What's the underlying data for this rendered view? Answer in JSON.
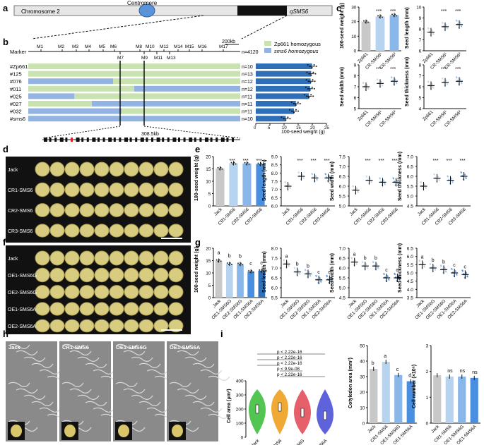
{
  "panels": {
    "a": "a",
    "b": "b",
    "c": "c",
    "d": "d",
    "e": "e",
    "f": "f",
    "g": "g",
    "h": "h",
    "i": "i"
  },
  "panel_a": {
    "chromosome": "Chromosome 2",
    "centromere": "Centromere",
    "qtl": "qSMS6"
  },
  "panel_b": {
    "scale": "200kb",
    "marker_label": "Marker",
    "n_total": "n=4120",
    "markers_top": [
      "M1",
      "M2",
      "M3",
      "M4",
      "M5",
      "M6",
      "M8",
      "M10",
      "M12",
      "M14",
      "M15",
      "M16",
      "M17"
    ],
    "markers_bottom": [
      "M7",
      "M9",
      "M11",
      "M13"
    ],
    "legend": [
      "Zp661 homozygous",
      "sms6 homozygous"
    ],
    "legend_colors": [
      "#c9e3b0",
      "#93b3e0"
    ],
    "lines": [
      {
        "name": "#Zp661",
        "n": "n=10",
        "value": 19.9
      },
      {
        "name": "#125",
        "n": "n=13",
        "value": 19.6
      },
      {
        "name": "#076",
        "n": "n=12",
        "value": 19.4
      },
      {
        "name": "#011",
        "n": "n=12",
        "value": 19.2
      },
      {
        "name": "#025",
        "n": "n=11",
        "value": 18.8
      },
      {
        "name": "#027",
        "n": "n=11",
        "value": 14.2
      },
      {
        "name": "#032",
        "n": "n=11",
        "value": 13.5
      },
      {
        "name": "#sms6",
        "n": "n=10",
        "value": 10.6
      }
    ],
    "bar_ticks": [
      "0",
      "5",
      "10",
      "15",
      "20",
      "25"
    ],
    "bar_xlabel": "100-seed weight (g)",
    "region": "308.5kb"
  },
  "panel_c": {
    "groups": [
      "Zp661",
      "CR-SMS6¹",
      "CR-SMS6²"
    ],
    "sig": "***",
    "charts": [
      {
        "ylabel": "100-seed weight (g)",
        "ticks": [
          "0",
          "10",
          "20",
          "30"
        ],
        "ylim": [
          0,
          30
        ],
        "values": [
          20,
          23.5,
          24.5
        ],
        "colors": [
          "#c8c8c8",
          "#b6d3f0",
          "#8ab7ea"
        ]
      },
      {
        "ylabel": "Seed length (mm)",
        "ticks": [
          "6",
          "7",
          "8",
          "9",
          "10"
        ],
        "ylim": [
          6,
          10
        ],
        "values": [
          7.7,
          8.2,
          8.4
        ]
      },
      {
        "ylabel": "Seed width (mm)",
        "ticks": [
          "5",
          "6",
          "7",
          "8",
          "9"
        ],
        "ylim": [
          5,
          9
        ],
        "values": [
          7.0,
          7.3,
          7.5
        ]
      },
      {
        "ylabel": "Seed thickness (mm)",
        "ticks": [
          "4",
          "5",
          "6",
          "7",
          "8"
        ],
        "ylim": [
          4,
          8
        ],
        "values": [
          6.1,
          6.4,
          6.5
        ]
      }
    ]
  },
  "panel_d": {
    "rows": [
      "Jack",
      "CR1-SMS6",
      "CR2-SMS6",
      "CR3-SMS6"
    ]
  },
  "panel_e": {
    "groups": [
      "Jack",
      "CR1-SMS6",
      "CR2-SMS6",
      "CR3-SMS6"
    ],
    "sig": "***",
    "charts": [
      {
        "ylabel": "100-seed weight (g)",
        "ticks": [
          "0",
          "5",
          "10",
          "15",
          "20"
        ],
        "ylim": [
          0,
          20
        ],
        "values": [
          15.2,
          17.3,
          17.2,
          17.0
        ]
      },
      {
        "ylabel": "Seed length (mm)",
        "ticks": [
          "6.0",
          "6.5",
          "7.0",
          "7.5",
          "8.0",
          "8.5",
          "9.0"
        ],
        "ylim": [
          6,
          9
        ],
        "values": [
          7.2,
          7.8,
          7.7,
          7.7
        ]
      },
      {
        "ylabel": "Seed width (mm)",
        "ticks": [
          "5.0",
          "5.5",
          "6.0",
          "6.5",
          "7.0",
          "7.5"
        ],
        "ylim": [
          5,
          7.5
        ],
        "values": [
          5.8,
          6.3,
          6.2,
          6.2
        ]
      },
      {
        "ylabel": "Seed thickness (mm)",
        "ticks": [
          "4.5",
          "5.0",
          "5.5",
          "6.0",
          "6.5",
          "7.0"
        ],
        "ylim": [
          4.5,
          7
        ],
        "values": [
          5.5,
          5.9,
          5.8,
          6.0
        ]
      }
    ]
  },
  "panel_f": {
    "rows": [
      "Jack",
      "OE1-SMS6G",
      "OE2-SMS6G",
      "OE1-SMS6A",
      "OE2-SMS6A"
    ]
  },
  "panel_g": {
    "groups": [
      "Jack",
      "OE1-SMS6G",
      "OE2-SMS6G",
      "OE1-SMS6A",
      "OE2-SMS6A"
    ],
    "charts": [
      {
        "ylabel": "100-seed weight (g)",
        "ticks": [
          "0",
          "5",
          "10",
          "15",
          "20"
        ],
        "ylim": [
          0,
          20
        ],
        "values": [
          15.0,
          13.7,
          13.6,
          10.6,
          10.9
        ],
        "letters": [
          "a",
          "b",
          "b",
          "c",
          "c"
        ]
      },
      {
        "ylabel": "Seed length (mm)",
        "ticks": [
          "5.5",
          "6.0",
          "6.5",
          "7.0",
          "7.5",
          "8.0"
        ],
        "ylim": [
          5.5,
          8
        ],
        "values": [
          7.2,
          6.8,
          6.7,
          6.4,
          6.4
        ],
        "letters": [
          "a",
          "b",
          "b",
          "c",
          "c"
        ]
      },
      {
        "ylabel": "Seed width (mm)",
        "ticks": [
          "4.5",
          "5.0",
          "5.5",
          "6.0",
          "6.5",
          "7.0"
        ],
        "ylim": [
          4.5,
          7
        ],
        "values": [
          6.3,
          6.1,
          6.1,
          5.5,
          5.5
        ],
        "letters": [
          "a",
          "b",
          "b",
          "c",
          "c"
        ]
      },
      {
        "ylabel": "Seed thickness (mm)",
        "ticks": [
          "3.5",
          "4.0",
          "4.5",
          "5.0",
          "5.5",
          "6.0",
          "6.5"
        ],
        "ylim": [
          3.5,
          6.5
        ],
        "values": [
          5.5,
          5.3,
          5.2,
          5.0,
          4.9
        ],
        "letters": [
          "a",
          "b",
          "b",
          "c",
          "c"
        ]
      }
    ]
  },
  "panel_h": {
    "labels": [
      "Jack",
      "CR1-SMS6",
      "OE1-SMS6G",
      "OE1-SMS6A"
    ]
  },
  "panel_i": {
    "violin_groups": [
      "Jack",
      "CR1-SMS6",
      "OE1-SMS6G",
      "OE1-SMS6A"
    ],
    "violin_colors": [
      "#3fbf3f",
      "#f0a020",
      "#e24f5a",
      "#4d52d8"
    ],
    "violin_ylabel": "Cell area (μm²)",
    "violin_ticks": [
      "0",
      "100",
      "200",
      "300",
      "400"
    ],
    "violin_medians": [
      200,
      215,
      175,
      155
    ],
    "pvalues": [
      "p < 2.22e-16",
      "p < 2.22e-16",
      "p < 2.22e-16",
      "p < 9.9e-08",
      "p < 2.22e-16"
    ],
    "cot_ylabel": "Cotyledon area (mm²)",
    "cot_ticks": [
      "0",
      "10",
      "20",
      "30",
      "40",
      "50"
    ],
    "cot_values": [
      35,
      39.5,
      31,
      27
    ],
    "cot_letters": [
      "b",
      "a",
      "c",
      "d"
    ],
    "cell_ylabel": "Cell number (×10⁵)",
    "cell_ticks": [
      "0",
      "1",
      "2",
      "3"
    ],
    "cell_values": [
      1.85,
      1.8,
      1.8,
      1.75
    ],
    "cell_letters": [
      "",
      "ns",
      "ns",
      "ns"
    ],
    "bar_colors": [
      "#c8c8c8",
      "#b6d3f0",
      "#8ab7ea",
      "#4a8ee0"
    ]
  }
}
